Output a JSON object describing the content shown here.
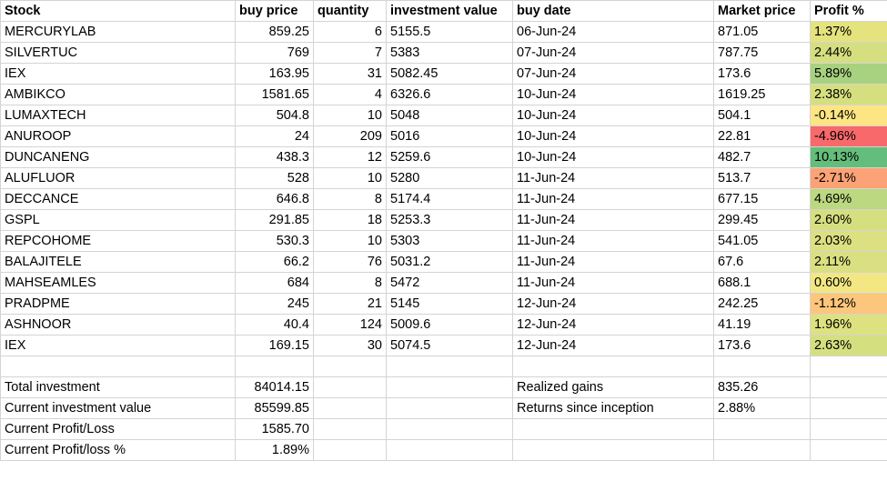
{
  "headers": [
    "Stock",
    "buy price",
    "quantity",
    "investment value",
    "buy date",
    "Market price",
    "Profit %"
  ],
  "rows": [
    {
      "stock": "MERCURYLAB",
      "buy_price": "859.25",
      "quantity": "6",
      "investment_value": "5155.5",
      "buy_date": "06-Jun-24",
      "market_price": "871.05",
      "profit_pct": "1.37%",
      "profit_color": "#e4e37e"
    },
    {
      "stock": "SILVERTUC",
      "buy_price": "769",
      "quantity": "7",
      "investment_value": "5383",
      "buy_date": "07-Jun-24",
      "market_price": "787.75",
      "profit_pct": "2.44%",
      "profit_color": "#d6df7f"
    },
    {
      "stock": "IEX",
      "buy_price": "163.95",
      "quantity": "31",
      "investment_value": "5082.45",
      "buy_date": "07-Jun-24",
      "market_price": "173.6",
      "profit_pct": "5.89%",
      "profit_color": "#a8d27f"
    },
    {
      "stock": "AMBIKCO",
      "buy_price": "1581.65",
      "quantity": "4",
      "investment_value": "6326.6",
      "buy_date": "10-Jun-24",
      "market_price": "1619.25",
      "profit_pct": "2.38%",
      "profit_color": "#d6df7f"
    },
    {
      "stock": "LUMAXTECH",
      "buy_price": "504.8",
      "quantity": "10",
      "investment_value": "5048",
      "buy_date": "10-Jun-24",
      "market_price": "504.1",
      "profit_pct": "-0.14%",
      "profit_color": "#fde583"
    },
    {
      "stock": "ANUROOP",
      "buy_price": "24",
      "quantity": "209",
      "investment_value": "5016",
      "buy_date": "10-Jun-24",
      "market_price": "22.81",
      "profit_pct": "-4.96%",
      "profit_color": "#f8696b"
    },
    {
      "stock": "DUNCANENG",
      "buy_price": "438.3",
      "quantity": "12",
      "investment_value": "5259.6",
      "buy_date": "10-Jun-24",
      "market_price": "482.7",
      "profit_pct": "10.13%",
      "profit_color": "#63be7b"
    },
    {
      "stock": "ALUFLUOR",
      "buy_price": "528",
      "quantity": "10",
      "investment_value": "5280",
      "buy_date": "11-Jun-24",
      "market_price": "513.7",
      "profit_pct": "-2.71%",
      "profit_color": "#fba276"
    },
    {
      "stock": "DECCANCE",
      "buy_price": "646.8",
      "quantity": "8",
      "investment_value": "5174.4",
      "buy_date": "11-Jun-24",
      "market_price": "677.15",
      "profit_pct": "4.69%",
      "profit_color": "#bcd880"
    },
    {
      "stock": "GSPL",
      "buy_price": "291.85",
      "quantity": "18",
      "investment_value": "5253.3",
      "buy_date": "11-Jun-24",
      "market_price": "299.45",
      "profit_pct": "2.60%",
      "profit_color": "#d5df7f"
    },
    {
      "stock": "REPCOHOME",
      "buy_price": "530.3",
      "quantity": "10",
      "investment_value": "5303",
      "buy_date": "11-Jun-24",
      "market_price": "541.05",
      "profit_pct": "2.03%",
      "profit_color": "#dce081"
    },
    {
      "stock": "BALAJITELE",
      "buy_price": "66.2",
      "quantity": "76",
      "investment_value": "5031.2",
      "buy_date": "11-Jun-24",
      "market_price": "67.6",
      "profit_pct": "2.11%",
      "profit_color": "#dae081"
    },
    {
      "stock": "MAHSEAMLES",
      "buy_price": "684",
      "quantity": "8",
      "investment_value": "5472",
      "buy_date": "11-Jun-24",
      "market_price": "688.1",
      "profit_pct": "0.60%",
      "profit_color": "#f2e783"
    },
    {
      "stock": "PRADPME",
      "buy_price": "245",
      "quantity": "21",
      "investment_value": "5145",
      "buy_date": "12-Jun-24",
      "market_price": "242.25",
      "profit_pct": "-1.12%",
      "profit_color": "#fcc67c"
    },
    {
      "stock": "ASHNOOR",
      "buy_price": "40.4",
      "quantity": "124",
      "investment_value": "5009.6",
      "buy_date": "12-Jun-24",
      "market_price": "41.19",
      "profit_pct": "1.96%",
      "profit_color": "#dee17f"
    },
    {
      "stock": "IEX",
      "buy_price": "169.15",
      "quantity": "30",
      "investment_value": "5074.5",
      "buy_date": "12-Jun-24",
      "market_price": "173.6",
      "profit_pct": "2.63%",
      "profit_color": "#d4df7f"
    }
  ],
  "summary": {
    "total_investment_label": "Total investment",
    "total_investment": "84014.15",
    "current_value_label": "Current investment value",
    "current_value": "85599.85",
    "profit_loss_label": "Current Profit/Loss",
    "profit_loss": "1585.70",
    "profit_loss_pct_label": "Current Profit/loss %",
    "profit_loss_pct": "1.89%",
    "realized_gains_label": "Realized gains",
    "realized_gains": "835.26",
    "returns_label": "Returns since inception",
    "returns": "2.88%"
  }
}
